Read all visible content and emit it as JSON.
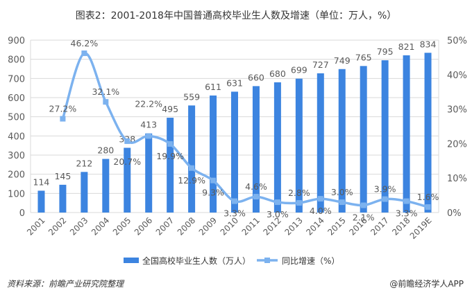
{
  "title": "图表2：2001-2018年中国普通高校毕业生人数及增速（单位：万人，%）",
  "footer": {
    "source": "资料来源：前瞻产业研究院整理",
    "brand": "@前瞻经济学人APP"
  },
  "colors": {
    "bar": "#3c84e0",
    "line": "#7cb2ef",
    "grid": "#d9d9d9"
  },
  "chart_data": {
    "type": "bar",
    "categories": [
      "2001",
      "2002",
      "2003",
      "2004",
      "2005",
      "2006",
      "2007",
      "2008",
      "2009",
      "2010",
      "2011",
      "2012",
      "2013",
      "2014",
      "2015",
      "2016",
      "2017",
      "2018",
      "2019E"
    ],
    "series": [
      {
        "name": "全国高校毕业生人数（万人）",
        "type": "bar",
        "axis": "left",
        "values": [
          114,
          145,
          212,
          280,
          338,
          413,
          495,
          559,
          611,
          631,
          660,
          680,
          699,
          727,
          749,
          765,
          795,
          821,
          834
        ]
      },
      {
        "name": "同比增速（%）",
        "type": "line",
        "axis": "right",
        "values": [
          null,
          27.2,
          46.2,
          32.1,
          20.7,
          22.2,
          19.9,
          12.9,
          9.3,
          3.3,
          4.6,
          3.0,
          2.8,
          4.0,
          3.0,
          2.1,
          3.9,
          3.3,
          1.6
        ]
      }
    ],
    "yleft": {
      "range": [
        0,
        900
      ],
      "ticks": [
        "0",
        "100",
        "200",
        "300",
        "400",
        "500",
        "600",
        "700",
        "800",
        "900"
      ]
    },
    "yright": {
      "range": [
        0,
        50
      ],
      "ticks": [
        "0%",
        "10%",
        "20%",
        "30%",
        "40%",
        "50%"
      ]
    },
    "grid": true,
    "legend": "bottom"
  }
}
